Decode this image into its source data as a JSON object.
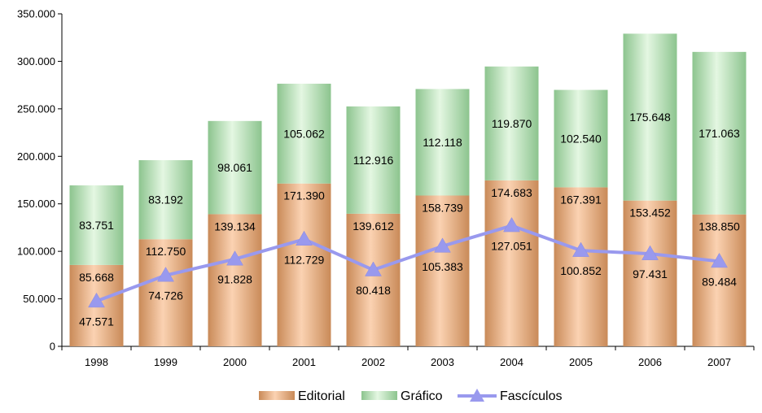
{
  "chart_data": {
    "type": "bar",
    "stacked": true,
    "categories": [
      "1998",
      "1999",
      "2000",
      "2001",
      "2002",
      "2003",
      "2004",
      "2005",
      "2006",
      "2007"
    ],
    "series": [
      {
        "name": "Editorial",
        "kind": "bar",
        "values": [
          85668,
          112750,
          139134,
          171390,
          139612,
          158739,
          174683,
          167391,
          153452,
          138850
        ],
        "labels": [
          "85.668",
          "112.750",
          "139.134",
          "171.390",
          "139.612",
          "158.739",
          "174.683",
          "167.391",
          "153.452",
          "138.850"
        ],
        "color": "#e8a878"
      },
      {
        "name": "Gráfico",
        "kind": "bar",
        "values": [
          83751,
          83192,
          98061,
          105062,
          112916,
          112118,
          119870,
          102540,
          175648,
          171063
        ],
        "labels": [
          "83.751",
          "83.192",
          "98.061",
          "105.062",
          "112.916",
          "112.118",
          "119.870",
          "102.540",
          "175.648",
          "171.063"
        ],
        "color": "#a8dcaa"
      },
      {
        "name": "Fascículos",
        "kind": "line",
        "values": [
          47571,
          74726,
          91828,
          112729,
          80418,
          105383,
          127051,
          100852,
          97431,
          89484
        ],
        "labels": [
          "47.571",
          "74.726",
          "91.828",
          "112.729",
          "80.418",
          "105.383",
          "127.051",
          "100.852",
          "97.431",
          "89.484"
        ],
        "color": "#9999ee"
      }
    ],
    "ylim": [
      0,
      350000
    ],
    "yticks": [
      "0",
      "50.000",
      "100.000",
      "150.000",
      "200.000",
      "250.000",
      "300.000",
      "350.000"
    ],
    "title": "",
    "xlabel": "",
    "ylabel": "",
    "legend_position": "bottom",
    "grid": false
  }
}
